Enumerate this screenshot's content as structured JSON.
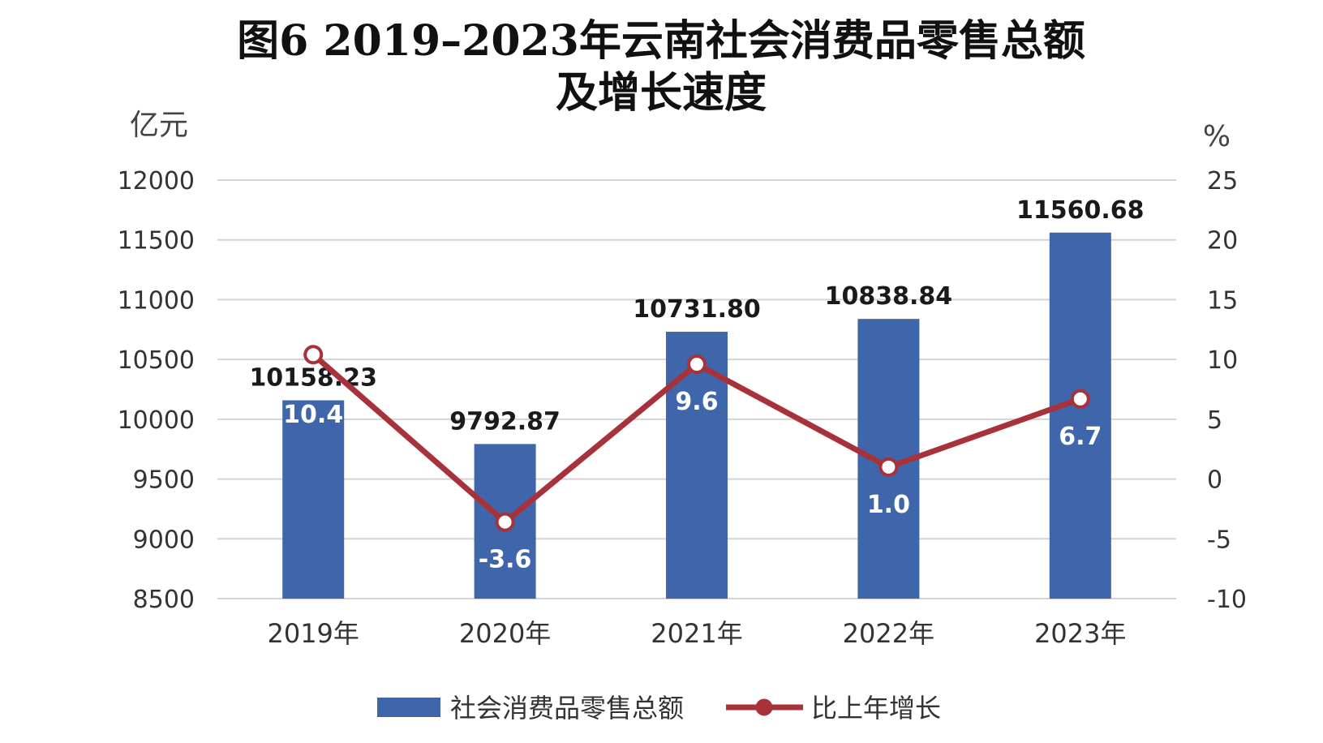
{
  "chart_data": {
    "type": "bar",
    "title_line1": "图6  2019–2023年云南社会消费品零售总额",
    "title_line2": "及增长速度",
    "y_unit_left": "亿元",
    "y_unit_right": "%",
    "categories": [
      "2019年",
      "2020年",
      "2021年",
      "2022年",
      "2023年"
    ],
    "ylim_left": [
      8500,
      12000
    ],
    "yticks_left": [
      "12000",
      "11500",
      "11000",
      "10500",
      "10000",
      "9500",
      "9000",
      "8500"
    ],
    "ylim_right": [
      -10,
      25
    ],
    "yticks_right": [
      "25",
      "20",
      "15",
      "10",
      "5",
      "0",
      "-5",
      "-10"
    ],
    "grid": true,
    "legend_position": "bottom",
    "series": [
      {
        "name": "社会消费品零售总额",
        "type": "bar",
        "axis": "left",
        "color": "#3f66ab",
        "values": [
          10158.23,
          9792.87,
          10731.8,
          10838.84,
          11560.68
        ],
        "labels": [
          "10158.23",
          "9792.87",
          "10731.80",
          "10838.84",
          "11560.68"
        ]
      },
      {
        "name": "比上年增长",
        "type": "line",
        "axis": "right",
        "color": "#a8323a",
        "values": [
          10.4,
          -3.6,
          9.6,
          1.0,
          6.7
        ],
        "labels": [
          "10.4",
          "-3.6",
          "9.6",
          "1.0",
          "6.7"
        ]
      }
    ]
  }
}
